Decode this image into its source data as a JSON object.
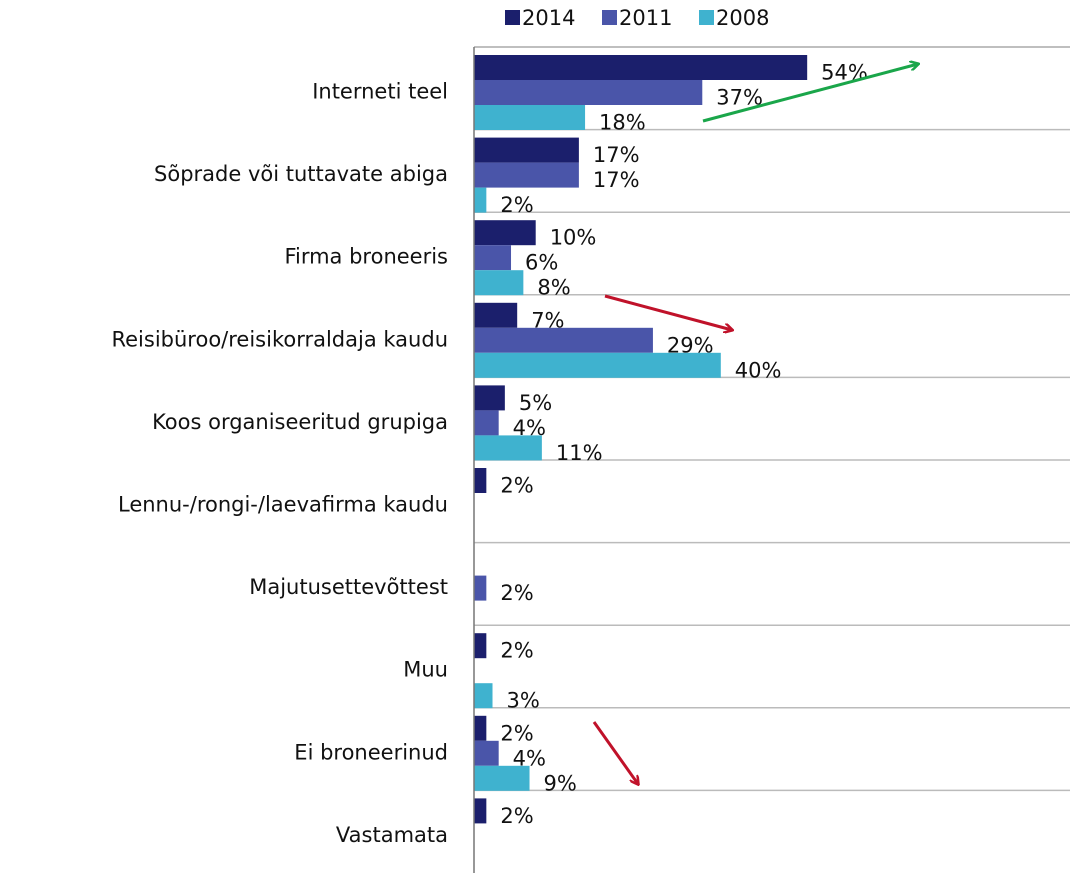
{
  "chart_data": {
    "type": "bar",
    "orientation": "horizontal",
    "categories": [
      "Interneti teel",
      "Sõprade või tuttavate abiga",
      "Firma broneeris",
      "Reisibüroo/reisikorraldaja kaudu",
      "Koos organiseeritud grupiga",
      "Lennu-/rongi-/laevafirma kaudu",
      "Majutusettevõttest",
      "Muu",
      "Ei broneerinud",
      "Vastamata"
    ],
    "series": [
      {
        "name": "2014",
        "color": "#1b1f6c",
        "values": [
          54,
          17,
          10,
          7,
          5,
          2,
          null,
          2,
          2,
          2
        ],
        "value_labels": [
          "54%",
          "17%",
          "10%",
          "7%",
          "5%",
          "2%",
          null,
          "2%",
          "2%",
          "2%"
        ]
      },
      {
        "name": "2011",
        "color": "#4a55a9",
        "values": [
          37,
          17,
          6,
          29,
          4,
          null,
          2,
          null,
          4,
          null
        ],
        "value_labels": [
          "37%",
          "17%",
          "6%",
          "29%",
          "4%",
          null,
          "2%",
          null,
          "4%",
          null
        ]
      },
      {
        "name": "2008",
        "color": "#3fb2cf",
        "values": [
          18,
          2,
          8,
          40,
          11,
          null,
          null,
          3,
          9,
          null
        ],
        "value_labels": [
          "18%",
          "2%",
          "8%",
          "40%",
          "11%",
          null,
          null,
          "3%",
          "9%",
          null
        ]
      }
    ],
    "grid": true,
    "legend": "top"
  }
}
